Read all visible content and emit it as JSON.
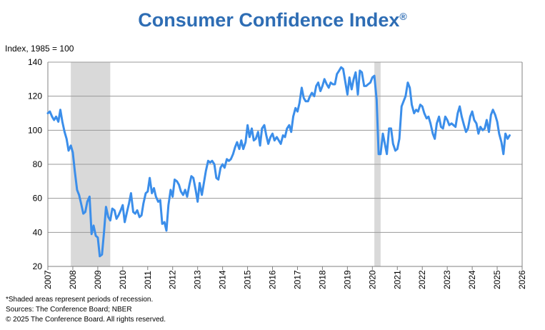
{
  "title": "Consumer Confidence Index",
  "title_mark": "®",
  "y_axis_label": "Index, 1985 = 100",
  "footnotes": {
    "note": "*Shaded areas represent periods of recession.",
    "sources": "Sources: The Conference Board;  NBER",
    "copyright": "© 2025 The Conference Board. All rights reserved."
  },
  "colors": {
    "line": "#3b8eea",
    "recession": "#d9d9d9",
    "grid": "#9a9a9a",
    "title": "#2e6db4"
  },
  "chart_data": {
    "type": "line",
    "title": "Consumer Confidence Index",
    "ylabel": "Index, 1985 = 100",
    "xlabel": "",
    "xlim": [
      2007,
      2026
    ],
    "ylim": [
      20,
      140
    ],
    "x_ticks": [
      "2007",
      "2008",
      "2009",
      "2010",
      "2011",
      "2012",
      "2013",
      "2014",
      "2015",
      "2016",
      "2017",
      "2018",
      "2019",
      "2020",
      "2021",
      "2022",
      "2023",
      "2024",
      "2025",
      "2026"
    ],
    "y_ticks": [
      "20",
      "40",
      "60",
      "80",
      "100",
      "120",
      "140"
    ],
    "grid": "horizontal",
    "recessions": [
      [
        2007.92,
        2009.5
      ],
      [
        2020.08,
        2020.33
      ]
    ],
    "series": [
      {
        "x": [
          2007.0,
          2007.08,
          2007.17,
          2007.25,
          2007.33,
          2007.42,
          2007.5,
          2007.58,
          2007.67,
          2007.75,
          2007.83,
          2007.92,
          2008.0,
          2008.08,
          2008.17,
          2008.25,
          2008.33,
          2008.42,
          2008.5,
          2008.58,
          2008.67,
          2008.75,
          2008.83,
          2008.92,
          2009.0,
          2009.08,
          2009.17,
          2009.25,
          2009.33,
          2009.42,
          2009.5,
          2009.58,
          2009.67,
          2009.75,
          2009.83,
          2009.92,
          2010.0,
          2010.08,
          2010.17,
          2010.25,
          2010.33,
          2010.42,
          2010.5,
          2010.58,
          2010.67,
          2010.75,
          2010.83,
          2010.92,
          2011.0,
          2011.08,
          2011.17,
          2011.25,
          2011.33,
          2011.42,
          2011.5,
          2011.58,
          2011.67,
          2011.75,
          2011.83,
          2011.92,
          2012.0,
          2012.08,
          2012.17,
          2012.25,
          2012.33,
          2012.42,
          2012.5,
          2012.58,
          2012.67,
          2012.75,
          2012.83,
          2012.92,
          2013.0,
          2013.08,
          2013.17,
          2013.25,
          2013.33,
          2013.42,
          2013.5,
          2013.58,
          2013.67,
          2013.75,
          2013.83,
          2013.92,
          2014.0,
          2014.08,
          2014.17,
          2014.25,
          2014.33,
          2014.42,
          2014.5,
          2014.58,
          2014.67,
          2014.75,
          2014.83,
          2014.92,
          2015.0,
          2015.08,
          2015.17,
          2015.25,
          2015.33,
          2015.42,
          2015.5,
          2015.58,
          2015.67,
          2015.75,
          2015.83,
          2015.92,
          2016.0,
          2016.08,
          2016.17,
          2016.25,
          2016.33,
          2016.42,
          2016.5,
          2016.58,
          2016.67,
          2016.75,
          2016.83,
          2016.92,
          2017.0,
          2017.08,
          2017.17,
          2017.25,
          2017.33,
          2017.42,
          2017.5,
          2017.58,
          2017.67,
          2017.75,
          2017.83,
          2017.92,
          2018.0,
          2018.08,
          2018.17,
          2018.25,
          2018.33,
          2018.42,
          2018.5,
          2018.58,
          2018.67,
          2018.75,
          2018.83,
          2018.92,
          2019.0,
          2019.08,
          2019.17,
          2019.25,
          2019.33,
          2019.42,
          2019.5,
          2019.58,
          2019.67,
          2019.75,
          2019.83,
          2019.92,
          2020.0,
          2020.08,
          2020.17,
          2020.25,
          2020.33,
          2020.42,
          2020.5,
          2020.58,
          2020.67,
          2020.75,
          2020.83,
          2020.92,
          2021.0,
          2021.08,
          2021.17,
          2021.25,
          2021.33,
          2021.42,
          2021.5,
          2021.58,
          2021.67,
          2021.75,
          2021.83,
          2021.92,
          2022.0,
          2022.08,
          2022.17,
          2022.25,
          2022.33,
          2022.42,
          2022.5,
          2022.58,
          2022.67,
          2022.75,
          2022.83,
          2022.92,
          2023.0,
          2023.08,
          2023.17,
          2023.25,
          2023.33,
          2023.42,
          2023.5,
          2023.58,
          2023.67,
          2023.75,
          2023.83,
          2023.92,
          2024.0,
          2024.08,
          2024.17,
          2024.25,
          2024.33,
          2024.42,
          2024.5,
          2024.58,
          2024.67,
          2024.75,
          2024.83,
          2024.92,
          2025.0,
          2025.08,
          2025.17,
          2025.25,
          2025.33,
          2025.42,
          2025.5
        ],
        "values": [
          110,
          111,
          108,
          106,
          108,
          105,
          112,
          105,
          99,
          95,
          88,
          91,
          87,
          76,
          65,
          62,
          57,
          51,
          52,
          58,
          61,
          39,
          44,
          38,
          37,
          26,
          27,
          40,
          55,
          49,
          47,
          54,
          53,
          48,
          50,
          53,
          56,
          46,
          52,
          57,
          63,
          52,
          51,
          53,
          49,
          50,
          57,
          63,
          64,
          72,
          63,
          66,
          61,
          58,
          59,
          45,
          46,
          41,
          56,
          65,
          61,
          71,
          70,
          68,
          64,
          62,
          65,
          61,
          68,
          73,
          72,
          65,
          58,
          69,
          62,
          69,
          76,
          82,
          81,
          82,
          80,
          72,
          71,
          78,
          80,
          78,
          83,
          82,
          83,
          86,
          90,
          93,
          89,
          94,
          89,
          93,
          103,
          96,
          101,
          94,
          95,
          99,
          91,
          101,
          103,
          97,
          92,
          96,
          98,
          94,
          96,
          94,
          92,
          97,
          96,
          101,
          103,
          99,
          108,
          113,
          111,
          116,
          125,
          119,
          117,
          117,
          120,
          122,
          120,
          126,
          128,
          123,
          126,
          130,
          127,
          125,
          128,
          127,
          127,
          133,
          135,
          137,
          136,
          128,
          121,
          131,
          124,
          130,
          134,
          121,
          135,
          134,
          126,
          126,
          127,
          128,
          131,
          132,
          118,
          86,
          86,
          98,
          92,
          86,
          101,
          101,
          92,
          88,
          89,
          95,
          114,
          117,
          120,
          128,
          125,
          115,
          110,
          112,
          111,
          115,
          114,
          110,
          107,
          108,
          104,
          98,
          95,
          104,
          108,
          102,
          101,
          108,
          106,
          103,
          104,
          103,
          102,
          110,
          114,
          108,
          103,
          99,
          101,
          108,
          111,
          106,
          104,
          98,
          102,
          100,
          101,
          106,
          99,
          109,
          112,
          109,
          105,
          98,
          93,
          86,
          98,
          95,
          97
        ]
      }
    ]
  }
}
